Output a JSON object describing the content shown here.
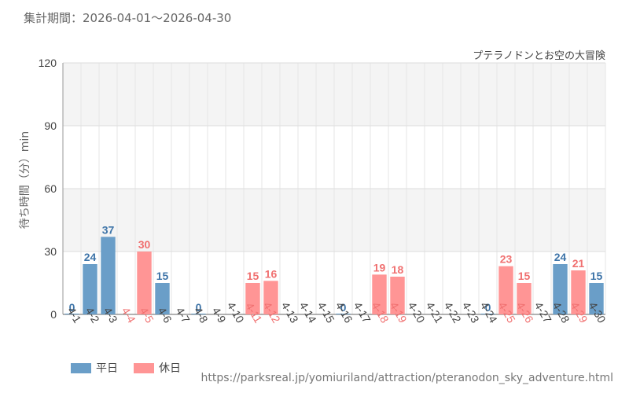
{
  "header": {
    "period_text": "集計期間：2026-04-01〜2026-04-30"
  },
  "footer": {
    "source_url": "https://parksreal.jp/yomiuriland/attraction/pteranodon_sky_adventure.html"
  },
  "chart_data": {
    "type": "bar",
    "title": "プテラノドンとお空の大冒険",
    "ylabel": "待ち時間（分）min",
    "xlabel": "",
    "ylim": [
      0,
      120
    ],
    "yticks": [
      0,
      30,
      60,
      90,
      120
    ],
    "grid": true,
    "legend_position": "bottom-left",
    "categories": [
      "4-1",
      "4-2",
      "4-3",
      "4-4",
      "4-5",
      "4-6",
      "4-7",
      "4-8",
      "4-9",
      "4-10",
      "4-11",
      "4-12",
      "4-13",
      "4-14",
      "4-15",
      "4-16",
      "4-17",
      "4-18",
      "4-19",
      "4-20",
      "4-21",
      "4-22",
      "4-23",
      "4-24",
      "4-25",
      "4-26",
      "4-27",
      "4-28",
      "4-29",
      "4-30"
    ],
    "values": [
      0,
      24,
      37,
      null,
      30,
      15,
      null,
      0,
      null,
      null,
      15,
      16,
      null,
      null,
      null,
      0,
      null,
      19,
      18,
      null,
      null,
      null,
      null,
      0,
      23,
      15,
      null,
      24,
      21,
      15
    ],
    "day_type": [
      "weekday",
      "weekday",
      "weekday",
      "holiday",
      "holiday",
      "weekday",
      "weekday",
      "weekday",
      "weekday",
      "weekday",
      "holiday",
      "holiday",
      "weekday",
      "weekday",
      "weekday",
      "weekday",
      "weekday",
      "holiday",
      "holiday",
      "weekday",
      "weekday",
      "weekday",
      "weekday",
      "weekday",
      "holiday",
      "holiday",
      "weekday",
      "weekday",
      "holiday",
      "weekday"
    ],
    "series": [
      {
        "name": "平日",
        "key": "weekday",
        "color": "#6a9ec8",
        "label_color": "#3e74a8"
      },
      {
        "name": "休日",
        "key": "holiday",
        "color": "#ff9595",
        "label_color": "#f07070"
      }
    ]
  }
}
